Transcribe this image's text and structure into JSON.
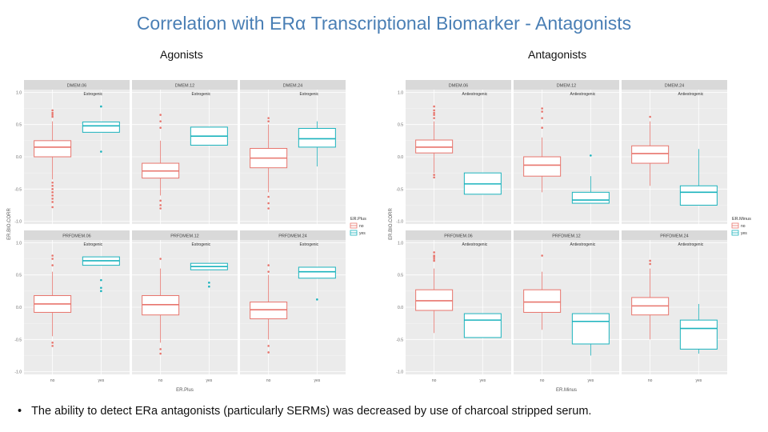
{
  "title": "Correlation with ERα Transcriptional Biomarker - Antagonists",
  "headers": {
    "agonists": "Agonists",
    "antagonists": "Antagonists"
  },
  "bullet": "The ability to detect ERa antagonists (particularly SERMs) was decreased by use of charcoal stripped serum.",
  "colors": {
    "no": "#e8756d",
    "yes": "#1bb3bd",
    "panel_bg": "#ebebeb",
    "strip_bg": "#d9d9d9",
    "grid": "#ffffff"
  },
  "chart_data": [
    {
      "type": "boxplot",
      "title": "Agonists",
      "ylabel": "ER.BIO.CORR",
      "xlabel": "ER.Plus",
      "ylim": [
        -1.0,
        1.0
      ],
      "yticks": [
        "1.0",
        "0.5",
        "0.0",
        "-0.5",
        "-1.0"
      ],
      "categories": [
        "no",
        "yes"
      ],
      "legend": {
        "title": "ER.Plus",
        "entries": [
          "no",
          "yes"
        ],
        "position": "right"
      },
      "panels": [
        {
          "strip": "DMEM.06",
          "annotation": "Estrogenic",
          "groups": [
            {
              "cat": "no",
              "q1": 0.0,
              "med": 0.15,
              "q3": 0.25,
              "lo": -0.35,
              "hi": 0.55,
              "outliers": [
                0.72,
                0.68,
                0.65,
                0.62,
                -0.4,
                -0.45,
                -0.5,
                -0.55,
                -0.6,
                -0.65,
                -0.7,
                -0.78
              ]
            },
            {
              "cat": "yes",
              "q1": 0.38,
              "med": 0.48,
              "q3": 0.54,
              "lo": 0.38,
              "hi": 0.54,
              "outliers": [
                0.78,
                0.08
              ]
            }
          ]
        },
        {
          "strip": "DMEM.12",
          "annotation": "Estrogenic",
          "groups": [
            {
              "cat": "no",
              "q1": -0.33,
              "med": -0.22,
              "q3": -0.1,
              "lo": -0.6,
              "hi": 0.25,
              "outliers": [
                0.65,
                0.55,
                0.45,
                -0.68,
                -0.75,
                -0.8
              ]
            },
            {
              "cat": "yes",
              "q1": 0.18,
              "med": 0.32,
              "q3": 0.46,
              "lo": 0.18,
              "hi": 0.46,
              "outliers": []
            }
          ]
        },
        {
          "strip": "DMEM.24",
          "annotation": "Estrogenic",
          "groups": [
            {
              "cat": "no",
              "q1": -0.17,
              "med": -0.02,
              "q3": 0.13,
              "lo": -0.55,
              "hi": 0.5,
              "outliers": [
                0.6,
                0.55,
                -0.62,
                -0.72,
                -0.8
              ]
            },
            {
              "cat": "yes",
              "q1": 0.15,
              "med": 0.28,
              "q3": 0.44,
              "lo": -0.15,
              "hi": 0.55,
              "outliers": []
            }
          ]
        },
        {
          "strip": "PRFDMEM.06",
          "annotation": "Estrogenic",
          "groups": [
            {
              "cat": "no",
              "q1": -0.08,
              "med": 0.05,
              "q3": 0.18,
              "lo": -0.45,
              "hi": 0.55,
              "outliers": [
                0.8,
                0.75,
                0.65,
                -0.55,
                -0.6
              ]
            },
            {
              "cat": "yes",
              "q1": 0.65,
              "med": 0.72,
              "q3": 0.78,
              "lo": 0.65,
              "hi": 0.78,
              "outliers": [
                0.42,
                0.3,
                0.25
              ]
            }
          ]
        },
        {
          "strip": "PRFDMEM.12",
          "annotation": "Estrogenic",
          "groups": [
            {
              "cat": "no",
              "q1": -0.12,
              "med": 0.04,
              "q3": 0.18,
              "lo": -0.55,
              "hi": 0.6,
              "outliers": [
                0.75,
                -0.65,
                -0.72
              ]
            },
            {
              "cat": "yes",
              "q1": 0.58,
              "med": 0.63,
              "q3": 0.68,
              "lo": 0.58,
              "hi": 0.68,
              "outliers": [
                0.38,
                0.32
              ]
            }
          ]
        },
        {
          "strip": "PRFDMEM.24",
          "annotation": "Estrogenic",
          "groups": [
            {
              "cat": "no",
              "q1": -0.18,
              "med": -0.04,
              "q3": 0.08,
              "lo": -0.5,
              "hi": 0.5,
              "outliers": [
                0.65,
                0.55,
                -0.6,
                -0.7
              ]
            },
            {
              "cat": "yes",
              "q1": 0.45,
              "med": 0.55,
              "q3": 0.62,
              "lo": 0.45,
              "hi": 0.62,
              "outliers": [
                0.12
              ]
            }
          ]
        }
      ]
    },
    {
      "type": "boxplot",
      "title": "Antagonists",
      "ylabel": "ER.BIO.CORR",
      "xlabel": "ER.Minus",
      "ylim": [
        -1.0,
        1.0
      ],
      "yticks": [
        "1.0",
        "0.5",
        "0.0",
        "-0.5",
        "-1.0"
      ],
      "categories": [
        "no",
        "yes"
      ],
      "legend": {
        "title": "ER.Minus",
        "entries": [
          "no",
          "yes"
        ],
        "position": "right"
      },
      "panels": [
        {
          "strip": "DMEM.06",
          "annotation": "Antiestrogenic",
          "groups": [
            {
              "cat": "no",
              "q1": 0.06,
              "med": 0.15,
              "q3": 0.26,
              "lo": -0.25,
              "hi": 0.55,
              "outliers": [
                0.78,
                0.72,
                0.68,
                0.65,
                0.6,
                -0.28,
                -0.32
              ]
            },
            {
              "cat": "yes",
              "q1": -0.58,
              "med": -0.42,
              "q3": -0.25,
              "lo": -0.58,
              "hi": -0.25,
              "outliers": []
            }
          ]
        },
        {
          "strip": "DMEM.12",
          "annotation": "Antiestrogenic",
          "groups": [
            {
              "cat": "no",
              "q1": -0.3,
              "med": -0.13,
              "q3": 0.0,
              "lo": -0.55,
              "hi": 0.3,
              "outliers": [
                0.75,
                0.7,
                0.6,
                0.45
              ]
            },
            {
              "cat": "yes",
              "q1": -0.72,
              "med": -0.67,
              "q3": -0.55,
              "lo": -0.72,
              "hi": -0.3,
              "outliers": [
                0.02
              ]
            }
          ]
        },
        {
          "strip": "DMEM.24",
          "annotation": "Antiestrogenic",
          "groups": [
            {
              "cat": "no",
              "q1": -0.1,
              "med": 0.05,
              "q3": 0.17,
              "lo": -0.45,
              "hi": 0.55,
              "outliers": [
                0.62
              ]
            },
            {
              "cat": "yes",
              "q1": -0.75,
              "med": -0.55,
              "q3": -0.45,
              "lo": -0.75,
              "hi": 0.12,
              "outliers": []
            }
          ]
        },
        {
          "strip": "PRFDMEM.06",
          "annotation": "Antiestrogenic",
          "groups": [
            {
              "cat": "no",
              "q1": -0.05,
              "med": 0.1,
              "q3": 0.27,
              "lo": -0.4,
              "hi": 0.6,
              "outliers": [
                0.85,
                0.8,
                0.78,
                0.75,
                0.72
              ]
            },
            {
              "cat": "yes",
              "q1": -0.47,
              "med": -0.2,
              "q3": -0.1,
              "lo": -0.47,
              "hi": -0.1,
              "outliers": []
            }
          ]
        },
        {
          "strip": "PRFDMEM.12",
          "annotation": "Antiestrogenic",
          "groups": [
            {
              "cat": "no",
              "q1": -0.08,
              "med": 0.08,
              "q3": 0.27,
              "lo": -0.35,
              "hi": 0.55,
              "outliers": [
                0.8
              ]
            },
            {
              "cat": "yes",
              "q1": -0.57,
              "med": -0.22,
              "q3": -0.1,
              "lo": -0.75,
              "hi": -0.1,
              "outliers": []
            }
          ]
        },
        {
          "strip": "PRFDMEM.24",
          "annotation": "Antiestrogenic",
          "groups": [
            {
              "cat": "no",
              "q1": -0.12,
              "med": 0.02,
              "q3": 0.15,
              "lo": -0.5,
              "hi": 0.6,
              "outliers": [
                0.72,
                0.67
              ]
            },
            {
              "cat": "yes",
              "q1": -0.65,
              "med": -0.33,
              "q3": -0.2,
              "lo": -0.72,
              "hi": 0.05,
              "outliers": []
            }
          ]
        }
      ]
    }
  ]
}
